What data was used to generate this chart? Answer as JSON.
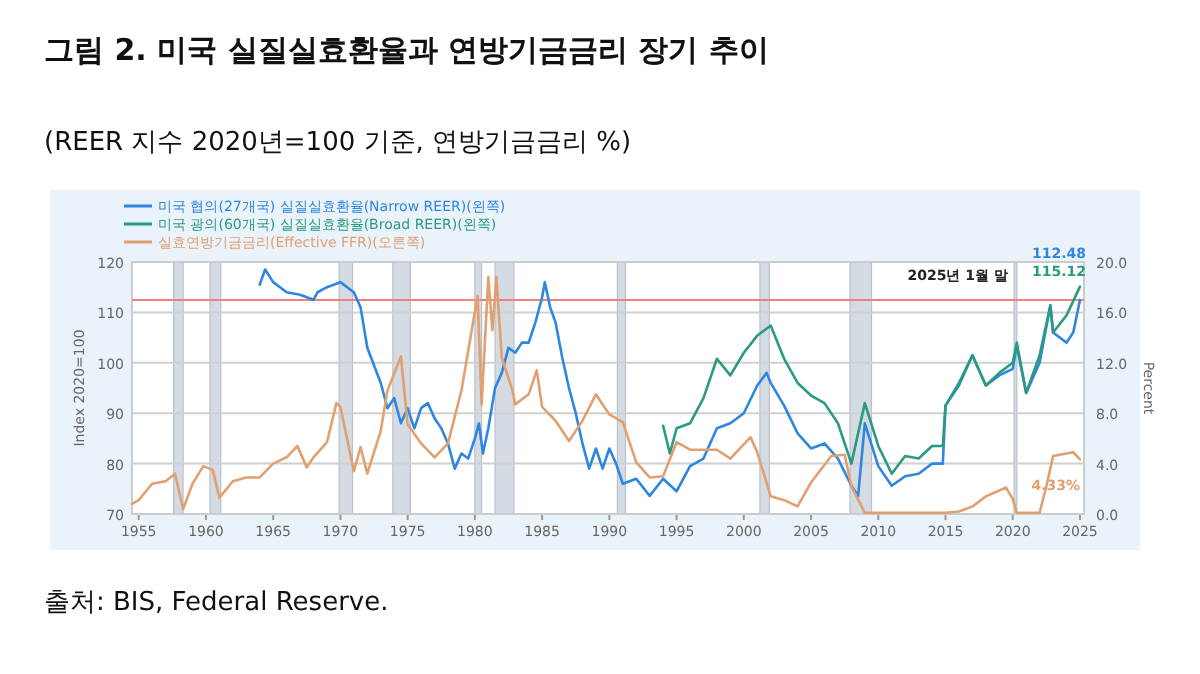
{
  "chart_data": {
    "type": "line",
    "title": "그림 2. 미국 실질실효환율과 연방기금금리 장기 추이",
    "subtitle": "(REER 지수 2020년=100 기준, 연방기금금리 %)",
    "ylabel": "Index 2020=100",
    "y2label": "Percent",
    "xlim": [
      1954.5,
      2025.3
    ],
    "xticks": [
      1955,
      1960,
      1965,
      1970,
      1975,
      1980,
      1985,
      1990,
      1995,
      2000,
      2005,
      2010,
      2015,
      2020,
      2025
    ],
    "ylim": [
      70,
      120
    ],
    "yticks": [
      70,
      80,
      90,
      100,
      110,
      120
    ],
    "y2lim": [
      0,
      20
    ],
    "y2ticks": [
      {
        "value": 0,
        "label": "0.0"
      },
      {
        "value": 4,
        "label": "4.0"
      },
      {
        "value": 8,
        "label": "8.0"
      },
      {
        "value": 12,
        "label": "12.0"
      },
      {
        "value": 16,
        "label": "16.0"
      },
      {
        "value": 20,
        "label": "20.0"
      }
    ],
    "grid": "y",
    "legend": "top left",
    "marker": "none",
    "line_style": "solid",
    "series": [
      {
        "name": "미국 협의(27개국) 실질실효환율(Narrow REER)(왼쪽)",
        "color": "#2f86e0",
        "x": [
          1964.0,
          1964.4,
          1965,
          1966,
          1967,
          1968,
          1968.3,
          1969,
          1970,
          1970.5,
          1971,
          1971.5,
          1972,
          1973,
          1973.5,
          1974,
          1974.5,
          1975,
          1975.5,
          1976,
          1976.5,
          1977,
          1977.5,
          1978,
          1978.5,
          1979,
          1979.5,
          1980,
          1980.3,
          1980.6,
          1981,
          1981.5,
          1982,
          1982.5,
          1983,
          1983.5,
          1984,
          1984.5,
          1985.0,
          1985.2,
          1985.6,
          1986,
          1986.5,
          1987,
          1987.5,
          1988,
          1988.5,
          1989,
          1989.5,
          1990,
          1990.5,
          1991,
          1992,
          1993,
          1994,
          1995,
          1996,
          1997,
          1998,
          1999,
          2000,
          2001,
          2001.7,
          2002,
          2003,
          2004,
          2005,
          2006,
          2007,
          2008,
          2008.5,
          2009,
          2010,
          2011,
          2012,
          2013,
          2014,
          2014.8,
          2015,
          2016,
          2017,
          2018,
          2019,
          2020,
          2020.3,
          2021,
          2022,
          2022.8,
          2023,
          2024,
          2024.5,
          2025
        ],
        "values": [
          115.5,
          118.5,
          116,
          114,
          113.5,
          112.5,
          114,
          115,
          116,
          115,
          114,
          111,
          103,
          96,
          91,
          93,
          88,
          91,
          87,
          91,
          92,
          89,
          87,
          84,
          79,
          82,
          81,
          85,
          88,
          82,
          87,
          95,
          98,
          103,
          102,
          104,
          104,
          108,
          113,
          116,
          111,
          108,
          101,
          95,
          90,
          84,
          79,
          83,
          79,
          83,
          80,
          76,
          77,
          73.6,
          77,
          74.5,
          79.5,
          81,
          87,
          88,
          90,
          95.5,
          98,
          96,
          91.5,
          86,
          83,
          84,
          81,
          75.6,
          73.6,
          88,
          79.5,
          75.6,
          77.5,
          78,
          80,
          80,
          91.5,
          96,
          101.5,
          95.5,
          97.5,
          98.8,
          103.4,
          94,
          100,
          111.4,
          106,
          104,
          106,
          112.48
        ]
      },
      {
        "name": "미국 광의(60개국) 실질실효환율(Broad REER)(왼쪽)",
        "color": "#2a9a80",
        "x": [
          1994,
          1994.5,
          1995,
          1996,
          1997,
          1998,
          1999,
          2000,
          2001,
          2002,
          2003,
          2004,
          2005,
          2006,
          2007,
          2008,
          2009,
          2010,
          2011,
          2012,
          2013,
          2014,
          2014.8,
          2015,
          2016,
          2017,
          2018,
          2019,
          2020,
          2020.3,
          2021,
          2022,
          2022.8,
          2023,
          2024,
          2025
        ],
        "values": [
          87.5,
          82,
          87,
          88,
          93,
          100.8,
          97.5,
          102,
          105.4,
          107.4,
          100.8,
          96,
          93.5,
          92,
          88,
          80,
          92,
          83.5,
          78,
          81.5,
          81,
          83.5,
          83.5,
          91.5,
          95.5,
          101.5,
          95.5,
          98,
          100,
          104,
          94,
          101.5,
          111.4,
          106,
          109.4,
          115.12
        ]
      },
      {
        "name": "실효연방기금금리(Effective FFR)(오른쪽)",
        "color": "#e0a070",
        "axis": "y2",
        "x": [
          1954.5,
          1955,
          1956,
          1957,
          1957.7,
          1958.3,
          1959,
          1959.8,
          1960.5,
          1961,
          1962,
          1963,
          1964,
          1965,
          1966,
          1966.8,
          1967.5,
          1968,
          1969,
          1969.7,
          1970,
          1971,
          1971.5,
          1972,
          1973,
          1973.5,
          1974.5,
          1975,
          1976,
          1977,
          1978,
          1979,
          1980.2,
          1980.5,
          1981,
          1981.3,
          1981.6,
          1982,
          1982.8,
          1983,
          1984,
          1984.6,
          1985,
          1986,
          1987,
          1988,
          1989,
          1990,
          1991,
          1992,
          1993,
          1994,
          1995,
          1996,
          1998,
          1999,
          2000.5,
          2001,
          2002,
          2003,
          2004,
          2005,
          2006.5,
          2007.5,
          2008,
          2009,
          2015,
          2016,
          2017,
          2018,
          2019.5,
          2020,
          2020.3,
          2022,
          2022.5,
          2023,
          2024.5,
          2025
        ],
        "values": [
          0.8,
          1.1,
          2.4,
          2.6,
          3.2,
          0.4,
          2.4,
          3.8,
          3.5,
          1.3,
          2.6,
          2.9,
          2.9,
          4.0,
          4.5,
          5.4,
          3.7,
          4.5,
          5.7,
          8.8,
          8.5,
          3.4,
          5.3,
          3.2,
          6.6,
          9.8,
          12.5,
          7.1,
          5.6,
          4.5,
          5.6,
          9.8,
          17.3,
          8.7,
          18.8,
          14.6,
          18.8,
          12.4,
          9.8,
          8.7,
          9.5,
          11.4,
          8.5,
          7.4,
          5.8,
          7.4,
          9.5,
          7.9,
          7.3,
          4.1,
          2.9,
          3.0,
          5.7,
          5.1,
          5.1,
          4.4,
          6.1,
          4.9,
          1.4,
          1.1,
          0.6,
          2.5,
          4.6,
          4.7,
          2.2,
          0.1,
          0.1,
          0.2,
          0.6,
          1.4,
          2.1,
          1.2,
          0.1,
          0.1,
          2.2,
          4.6,
          4.9,
          4.33
        ]
      }
    ],
    "bands": [
      {
        "axis": "x",
        "from": 1957.6,
        "to": 1958.3,
        "color": "#d5dbe3"
      },
      {
        "axis": "x",
        "from": 1960.3,
        "to": 1961.1,
        "color": "#d5dbe3"
      },
      {
        "axis": "x",
        "from": 1969.9,
        "to": 1970.9,
        "color": "#d5dbe3"
      },
      {
        "axis": "x",
        "from": 1973.9,
        "to": 1975.2,
        "color": "#d5dbe3"
      },
      {
        "axis": "x",
        "from": 1980.0,
        "to": 1980.5,
        "color": "#d5dbe3"
      },
      {
        "axis": "x",
        "from": 1981.5,
        "to": 1982.9,
        "color": "#d5dbe3"
      },
      {
        "axis": "x",
        "from": 1990.6,
        "to": 1991.2,
        "color": "#d5dbe3"
      },
      {
        "axis": "x",
        "from": 2001.2,
        "to": 2001.9,
        "color": "#d5dbe3"
      },
      {
        "axis": "x",
        "from": 2007.9,
        "to": 2009.5,
        "color": "#d5dbe3"
      },
      {
        "axis": "x",
        "from": 2020.1,
        "to": 2020.3,
        "color": "#d5dbe3"
      }
    ],
    "ref_lines": [
      {
        "axis": "y",
        "value": 112.48,
        "color": "#f08080",
        "line_style": "solid"
      }
    ],
    "annotations": [
      "2025년 1월 말",
      "112.48",
      "115.12",
      "4.33%",
      "출처: BIS, Federal Reserve."
    ]
  }
}
